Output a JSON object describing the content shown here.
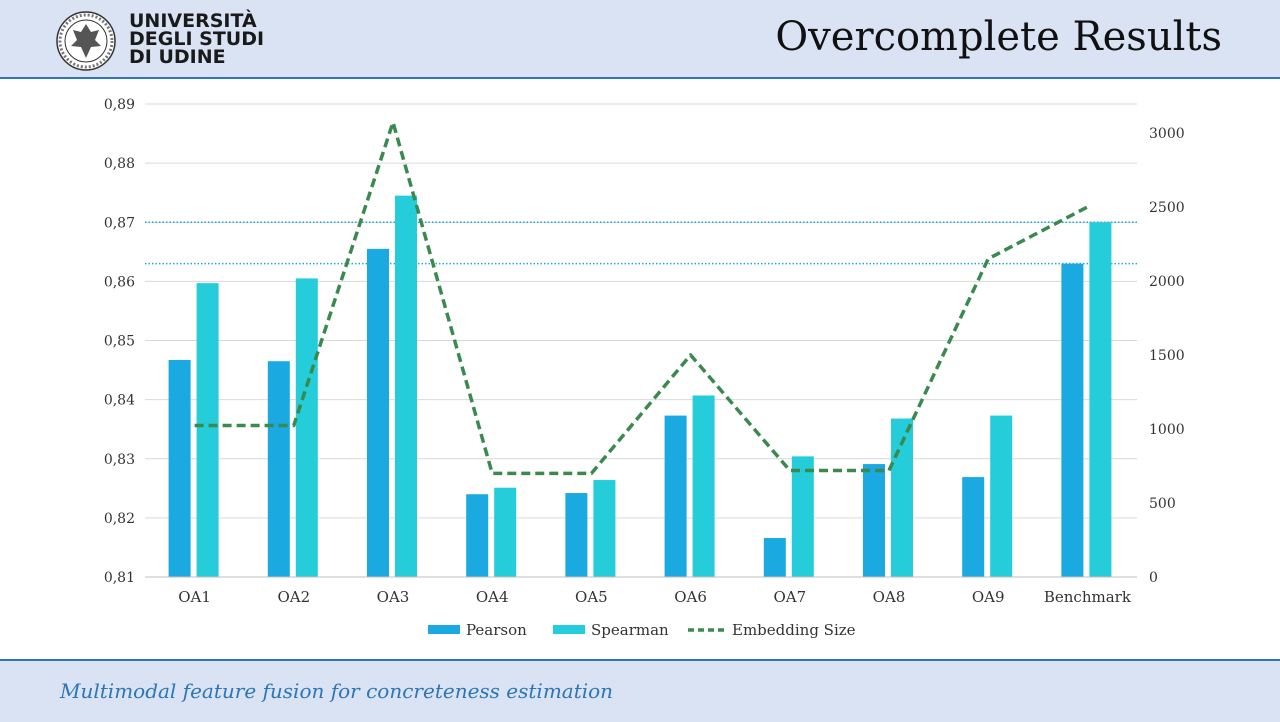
{
  "header": {
    "logo_lines": [
      "UNIVERSITÀ",
      "DEGLI STUDI",
      "DI UDINE"
    ],
    "title": "Overcomplete Results"
  },
  "footer": {
    "subtitle": "Multimodal feature fusion for concreteness estimation"
  },
  "colors": {
    "pearson": "#1ba9e2",
    "spearman": "#25ccd9",
    "embedding": "#3a8a4f",
    "accent": "#2e75b6"
  },
  "icons": {
    "logo": "university-seal-icon"
  },
  "chart_data": {
    "type": "bar",
    "categories": [
      "OA1",
      "OA2",
      "OA3",
      "OA4",
      "OA5",
      "OA6",
      "OA7",
      "OA8",
      "OA9",
      "Benchmark"
    ],
    "series": [
      {
        "name": "Pearson",
        "type": "bar",
        "axis": "left",
        "values": [
          0.8467,
          0.8465,
          0.8655,
          0.824,
          0.8242,
          0.8373,
          0.8166,
          0.8291,
          0.8269,
          0.863
        ]
      },
      {
        "name": "Spearman",
        "type": "bar",
        "axis": "left",
        "values": [
          0.8597,
          0.8605,
          0.8745,
          0.8251,
          0.8264,
          0.8407,
          0.8304,
          0.8368,
          0.8373,
          0.87
        ]
      },
      {
        "name": "Embedding Size",
        "type": "line",
        "style": "dashed",
        "axis": "right",
        "values": [
          1024,
          1024,
          3072,
          700,
          700,
          1500,
          720,
          720,
          2150,
          2500
        ]
      }
    ],
    "reference_lines": [
      0.87,
      0.863
    ],
    "ylim": [
      0.81,
      0.89
    ],
    "y_ticks": [
      "0,81",
      "0,82",
      "0,83",
      "0,84",
      "0,85",
      "0,86",
      "0,87",
      "0,88",
      "0,89"
    ],
    "y2lim": [
      0,
      3000
    ],
    "y2_ticks": [
      "0",
      "500",
      "1000",
      "1500",
      "2000",
      "2500",
      "3000"
    ],
    "grid": true,
    "legend_position": "bottom",
    "legend": [
      "Pearson",
      "Spearman",
      "Embedding Size"
    ]
  }
}
